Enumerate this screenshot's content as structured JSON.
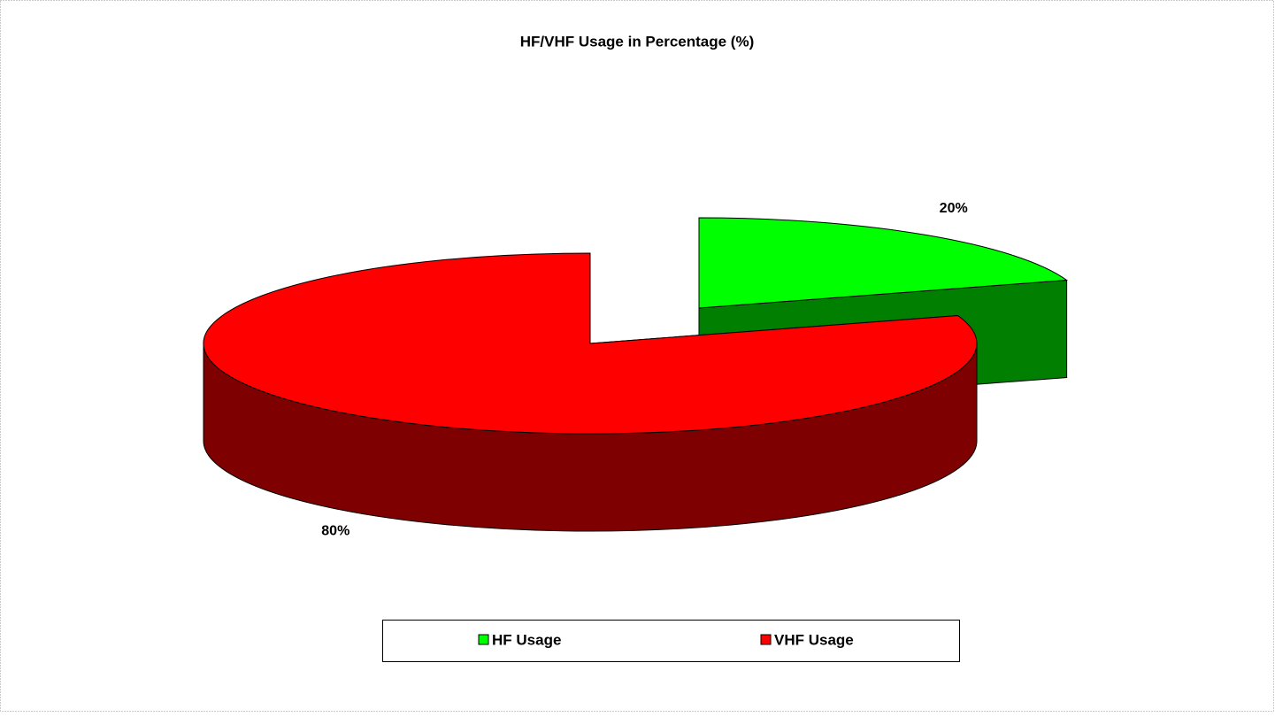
{
  "chart_data": {
    "type": "pie",
    "title": "HF/VHF Usage in Percentage (%)",
    "categories": [
      "HF Usage",
      "VHF Usage"
    ],
    "values": [
      20,
      80
    ],
    "value_labels": [
      "20%",
      "80%"
    ],
    "colors": [
      "#00ff00",
      "#ff0000"
    ],
    "legend": "bottom"
  }
}
